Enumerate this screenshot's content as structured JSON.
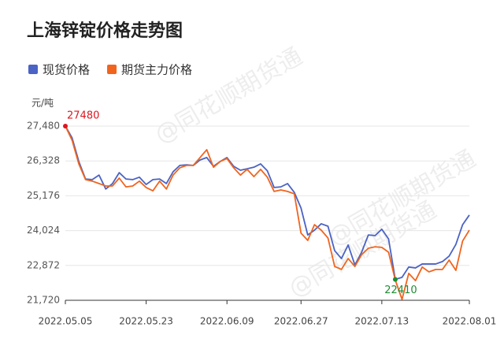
{
  "chart_data": {
    "type": "line",
    "title": "上海锌锭价格走势图",
    "y_unit": "元/吨",
    "watermark": "@同花顺期货通",
    "categories": [
      "2022.05.05",
      null,
      null,
      null,
      null,
      null,
      null,
      null,
      null,
      null,
      null,
      null,
      "2022.05.23",
      null,
      null,
      null,
      null,
      null,
      null,
      null,
      null,
      null,
      null,
      null,
      "2022.06.09",
      null,
      null,
      null,
      null,
      null,
      null,
      null,
      null,
      null,
      null,
      "2022.06.27",
      null,
      null,
      null,
      null,
      null,
      null,
      null,
      null,
      null,
      null,
      null,
      "2022.07.13",
      null,
      null,
      null,
      null,
      null,
      null,
      null,
      null,
      null,
      null,
      null,
      null,
      "2022.08.01"
    ],
    "series": [
      {
        "name": "现货价格",
        "color": "#4a63c4",
        "values": [
          27480,
          27090,
          26310,
          25730,
          25710,
          25860,
          25400,
          25580,
          25940,
          25730,
          25710,
          25790,
          25550,
          25710,
          25730,
          25580,
          25970,
          26180,
          26200,
          26180,
          26360,
          26440,
          26150,
          26310,
          26440,
          26150,
          26020,
          26070,
          26120,
          26230,
          26000,
          25450,
          25470,
          25580,
          25290,
          24770,
          23880,
          24040,
          24250,
          24170,
          23360,
          23100,
          23550,
          22890,
          23310,
          23880,
          23860,
          24070,
          23750,
          22410,
          22480,
          22820,
          22790,
          22920,
          22920,
          22920,
          23000,
          23180,
          23570,
          24220,
          24540
        ]
      },
      {
        "name": "期货主力价格",
        "color": "#f0641e",
        "values": [
          27480,
          27010,
          26230,
          25710,
          25660,
          25580,
          25500,
          25500,
          25760,
          25470,
          25500,
          25660,
          25450,
          25340,
          25660,
          25400,
          25860,
          26100,
          26180,
          26180,
          26440,
          26700,
          26120,
          26310,
          26410,
          26100,
          25860,
          26050,
          25810,
          26050,
          25790,
          25320,
          25370,
          25320,
          25240,
          23940,
          23700,
          24220,
          24040,
          23780,
          22840,
          22740,
          23100,
          22840,
          23230,
          23440,
          23490,
          23470,
          23310,
          22390,
          21750,
          22610,
          22370,
          22820,
          22660,
          22740,
          22740,
          23050,
          22710,
          23680,
          24040
        ]
      }
    ],
    "highlight_colors": {
      "max": "#e0141e",
      "min": "#1e8c32"
    },
    "ylim": [
      21720,
      27480
    ],
    "yticks": [
      {
        "value": 27480,
        "label": "27,480"
      },
      {
        "value": 26328,
        "label": "26,328"
      },
      {
        "value": 25176,
        "label": "25,176"
      },
      {
        "value": 24024,
        "label": "24,024"
      },
      {
        "value": 22872,
        "label": "22,872"
      },
      {
        "value": 21720,
        "label": "21,720"
      }
    ],
    "grid": true
  }
}
